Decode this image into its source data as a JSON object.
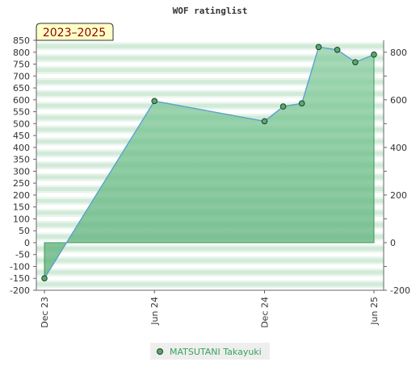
{
  "chart_data": {
    "type": "area",
    "title": "WOF ratinglist",
    "period_label": "2023–2025",
    "x_dates": [
      "2023-12-01",
      "2024-06-01",
      "2024-12-01",
      "2025-01-01",
      "2025-02-01",
      "2025-03-01",
      "2025-04-01",
      "2025-05-01",
      "2025-06-01"
    ],
    "x_ticks": [
      {
        "date": "2023-12-01",
        "label": "Dec 23"
      },
      {
        "date": "2024-06-01",
        "label": "Jun 24"
      },
      {
        "date": "2024-12-01",
        "label": "Dec 24"
      },
      {
        "date": "2025-06-01",
        "label": "Jun 25"
      }
    ],
    "xlim": [
      "2023-12-01",
      "2025-06-01"
    ],
    "series": [
      {
        "name": "MATSUTANI Takayuki",
        "values": [
          -150,
          595,
          510,
          572,
          585,
          822,
          810,
          758,
          790
        ]
      }
    ],
    "ylim_left": [
      -200,
      850
    ],
    "ylim_right": [
      -200,
      850
    ],
    "yticks_left": [
      -200,
      -150,
      -100,
      -50,
      0,
      50,
      100,
      150,
      200,
      250,
      300,
      350,
      400,
      450,
      500,
      550,
      600,
      650,
      700,
      750,
      800,
      850
    ],
    "yticks_right": [
      -200,
      0,
      200,
      400,
      600,
      800
    ],
    "grid": true,
    "legend": "bottom-center",
    "colors": {
      "line": "#5b9fd6",
      "fill": "#7dc796",
      "marker": "#5aa86e",
      "band_dark": "#c7e6cf",
      "band_light": "#ffffff",
      "period_box": "#ffffc8",
      "period_text": "#8b0000",
      "legend_text": "#3aa35a"
    }
  }
}
